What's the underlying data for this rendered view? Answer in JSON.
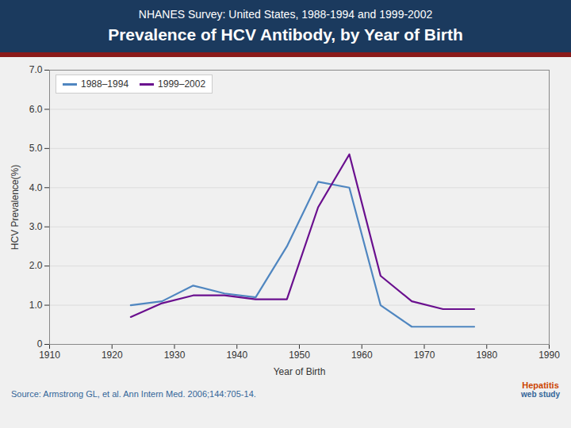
{
  "chart_data": {
    "type": "line",
    "title": "Prevalence of HCV Antibody, by Year of Birth",
    "subtitle": "NHANES Survey: United States, 1988-1994 and 1999-2002",
    "xlabel": "Year of Birth",
    "ylabel": "HCV Prevalence(%)",
    "caption": "Source: Armstrong GL, et al.  Ann Intern Med. 2006;144:705-14.",
    "annotations": [
      "Hepatitis",
      "web study"
    ],
    "x": [
      1923,
      1928,
      1933,
      1938,
      1943,
      1948,
      1953,
      1958,
      1963,
      1968,
      1973,
      1978
    ],
    "series": [
      {
        "name": "1988–1994",
        "color": "#4f86c0",
        "values": [
          1.0,
          1.1,
          1.5,
          1.3,
          1.2,
          2.5,
          4.15,
          4.0,
          1.0,
          0.45,
          0.45,
          0.45
        ]
      },
      {
        "name": "1999–2002",
        "color": "#6a0f8e",
        "values": [
          0.7,
          1.05,
          1.25,
          1.25,
          1.15,
          1.15,
          3.5,
          4.85,
          1.75,
          1.1,
          0.9,
          0.9
        ]
      }
    ],
    "xlim": [
      1910,
      1990
    ],
    "xticks": [
      1910,
      1920,
      1930,
      1940,
      1950,
      1960,
      1970,
      1980,
      1990
    ],
    "ylim": [
      0,
      7.0
    ],
    "yticks": [
      0,
      {
        "value": 1.0,
        "label": "1.0"
      },
      {
        "value": 2.0,
        "label": "2.0"
      },
      {
        "value": 3.0,
        "label": "3.0"
      },
      {
        "value": 4.0,
        "label": "4.0"
      },
      {
        "value": 5.0,
        "label": "5.0"
      },
      {
        "value": 6.0,
        "label": "6.0"
      },
      {
        "value": 7.0,
        "label": "7.0"
      }
    ],
    "grid": true,
    "legend": "upper left"
  }
}
